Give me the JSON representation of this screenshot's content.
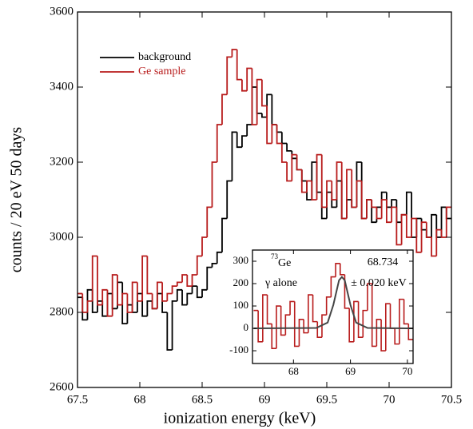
{
  "chart_data": [
    {
      "type": "histogram",
      "xlabel": "ionization energy (keV)",
      "ylabel": "counts / 20 eV 50 days",
      "xlim": [
        67.5,
        70.5
      ],
      "ylim": [
        2600,
        3600
      ],
      "xticks": [
        67.5,
        68,
        68.5,
        69,
        69.5,
        70,
        70.5
      ],
      "yticks": [
        2600,
        2800,
        3000,
        3200,
        3400,
        3600
      ],
      "legend": "upper left",
      "bins": [
        67.5,
        67.54,
        67.58,
        67.62,
        67.66,
        67.7,
        67.74,
        67.78,
        67.82,
        67.86,
        67.9,
        67.94,
        67.98,
        68.02,
        68.06,
        68.1,
        68.14,
        68.18,
        68.22,
        68.26,
        68.3,
        68.34,
        68.38,
        68.42,
        68.46,
        68.5,
        68.54,
        68.58,
        68.62,
        68.66,
        68.7,
        68.74,
        68.78,
        68.82,
        68.86,
        68.9,
        68.94,
        68.98,
        69.02,
        69.06,
        69.1,
        69.14,
        69.18,
        69.22,
        69.26,
        69.3,
        69.34,
        69.38,
        69.42,
        69.46,
        69.5,
        69.54,
        69.58,
        69.62,
        69.66,
        69.7,
        69.74,
        69.78,
        69.82,
        69.86,
        69.9,
        69.94,
        69.98,
        70.02,
        70.06,
        70.1,
        70.14,
        70.18,
        70.22,
        70.26,
        70.3,
        70.34,
        70.38,
        70.42,
        70.46,
        70.5
      ],
      "series": [
        {
          "name": "background",
          "color": "#000000",
          "values": [
            2840,
            2780,
            2860,
            2800,
            2830,
            2790,
            2850,
            2810,
            2880,
            2770,
            2820,
            2800,
            2850,
            2790,
            2830,
            2810,
            2850,
            2800,
            2700,
            2830,
            2860,
            2820,
            2850,
            2870,
            2840,
            2860,
            2920,
            2930,
            2960,
            3050,
            3150,
            3280,
            3240,
            3270,
            3300,
            3400,
            3330,
            3320,
            3380,
            3300,
            3280,
            3250,
            3230,
            3210,
            3180,
            3150,
            3100,
            3200,
            3120,
            3050,
            3120,
            3080,
            3150,
            3050,
            3100,
            3080,
            3200,
            3050,
            3100,
            3040,
            3080,
            3120,
            3080,
            3100,
            3040,
            3060,
            3120,
            3000,
            3050,
            3020,
            3000,
            3060,
            3000,
            3080,
            3050
          ]
        },
        {
          "name": "Ge sample",
          "color": "#b81c1c",
          "values": [
            2850,
            2800,
            2830,
            2950,
            2820,
            2860,
            2790,
            2900,
            2820,
            2850,
            2800,
            2880,
            2830,
            2950,
            2850,
            2810,
            2880,
            2830,
            2850,
            2870,
            2880,
            2900,
            2870,
            2900,
            2950,
            3000,
            3080,
            3200,
            3300,
            3380,
            3480,
            3500,
            3420,
            3390,
            3450,
            3300,
            3420,
            3350,
            3250,
            3300,
            3250,
            3200,
            3150,
            3220,
            3180,
            3120,
            3150,
            3100,
            3220,
            3080,
            3150,
            3100,
            3200,
            3050,
            3180,
            3080,
            3150,
            3050,
            3100,
            3080,
            3050,
            3100,
            3040,
            3080,
            2980,
            3060,
            3000,
            3050,
            2960,
            3040,
            3000,
            2950,
            3020,
            3000,
            3080
          ]
        }
      ]
    },
    {
      "type": "histogram",
      "xlim": [
        67.28,
        70.1
      ],
      "ylim": [
        -157,
        350
      ],
      "xticks": [
        68,
        69,
        70
      ],
      "yticks": [
        -100,
        0,
        100,
        200,
        300
      ],
      "annotations": [
        "73",
        "Ge",
        "γ alone",
        "68.734",
        "± 0.020 keV"
      ],
      "bins": [
        67.3,
        67.38,
        67.46,
        67.54,
        67.62,
        67.7,
        67.78,
        67.86,
        67.94,
        68.02,
        68.1,
        68.18,
        68.26,
        68.34,
        68.42,
        68.5,
        68.58,
        68.66,
        68.74,
        68.82,
        68.9,
        68.98,
        69.06,
        69.14,
        69.22,
        69.3,
        69.38,
        69.46,
        69.54,
        69.62,
        69.7,
        69.78,
        69.86,
        69.94,
        70.02,
        70.1
      ],
      "series": [
        {
          "color": "#b81c1c",
          "values": [
            80,
            -60,
            150,
            20,
            -90,
            100,
            -30,
            60,
            120,
            -80,
            40,
            -20,
            150,
            30,
            -40,
            60,
            140,
            230,
            290,
            240,
            90,
            -60,
            120,
            -40,
            80,
            200,
            -80,
            40,
            -100,
            110,
            0,
            -70,
            130,
            20,
            -50
          ]
        }
      ],
      "fit": {
        "type": "line",
        "color": "#444444",
        "x": [
          67.3,
          68.4,
          68.6,
          68.7,
          68.8,
          68.85,
          68.9,
          69.0,
          69.1,
          69.3,
          70.1
        ],
        "y": [
          0,
          2,
          26,
          105,
          215,
          230,
          215,
          105,
          26,
          2,
          0
        ]
      }
    }
  ]
}
